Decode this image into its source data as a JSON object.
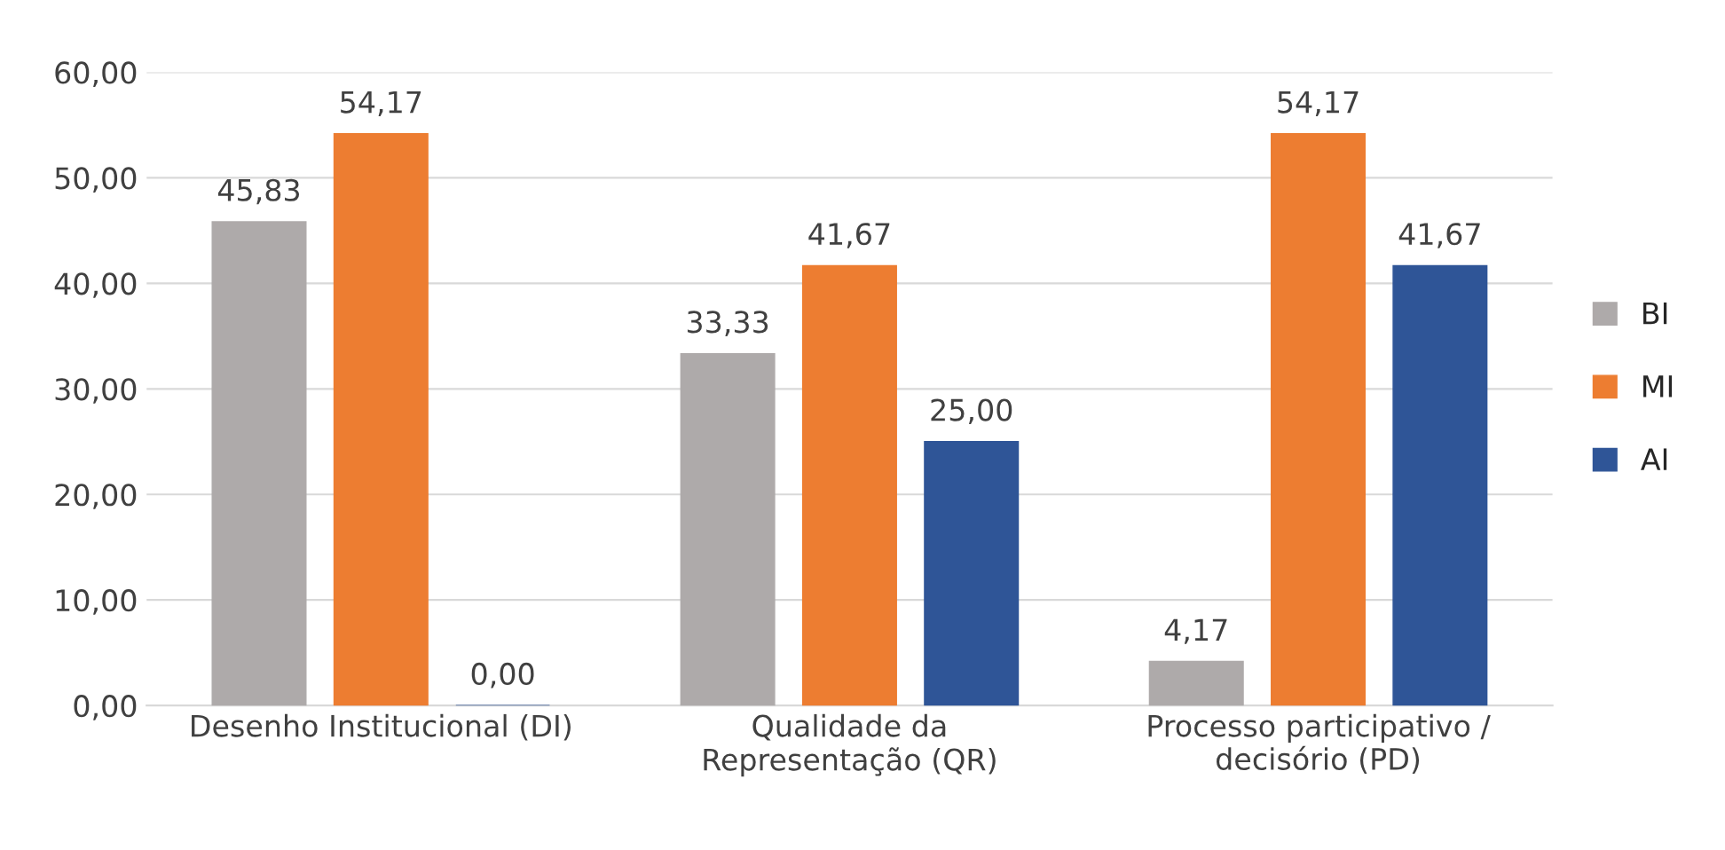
{
  "chart_data": {
    "type": "bar",
    "categories": [
      "Desenho Institucional (DI)",
      "Qualidade da\nRepresentação (QR)",
      "Processo participativo /\ndecisório (PD)"
    ],
    "series": [
      {
        "name": "BI",
        "color": "#aeaaaa",
        "values": [
          45.83,
          33.33,
          4.17
        ],
        "value_labels": [
          "45,83",
          "33,33",
          "4,17"
        ]
      },
      {
        "name": "MI",
        "color": "#ed7d31",
        "values": [
          54.17,
          41.67,
          54.17
        ],
        "value_labels": [
          "54,17",
          "41,67",
          "54,17"
        ]
      },
      {
        "name": "AI",
        "color": "#2f5597",
        "values": [
          0.0,
          25.0,
          41.67
        ],
        "value_labels": [
          "0,00",
          "25,00",
          "41,67"
        ]
      }
    ],
    "ylim": [
      0,
      60
    ],
    "yticks": [
      {
        "value": 0,
        "label": "0,00"
      },
      {
        "value": 10,
        "label": "10,00"
      },
      {
        "value": 20,
        "label": "20,00"
      },
      {
        "value": 30,
        "label": "30,00"
      },
      {
        "value": 40,
        "label": "40,00"
      },
      {
        "value": 50,
        "label": "50,00"
      },
      {
        "value": 60,
        "label": "60,00"
      }
    ],
    "grid": "y",
    "legend": "right"
  }
}
